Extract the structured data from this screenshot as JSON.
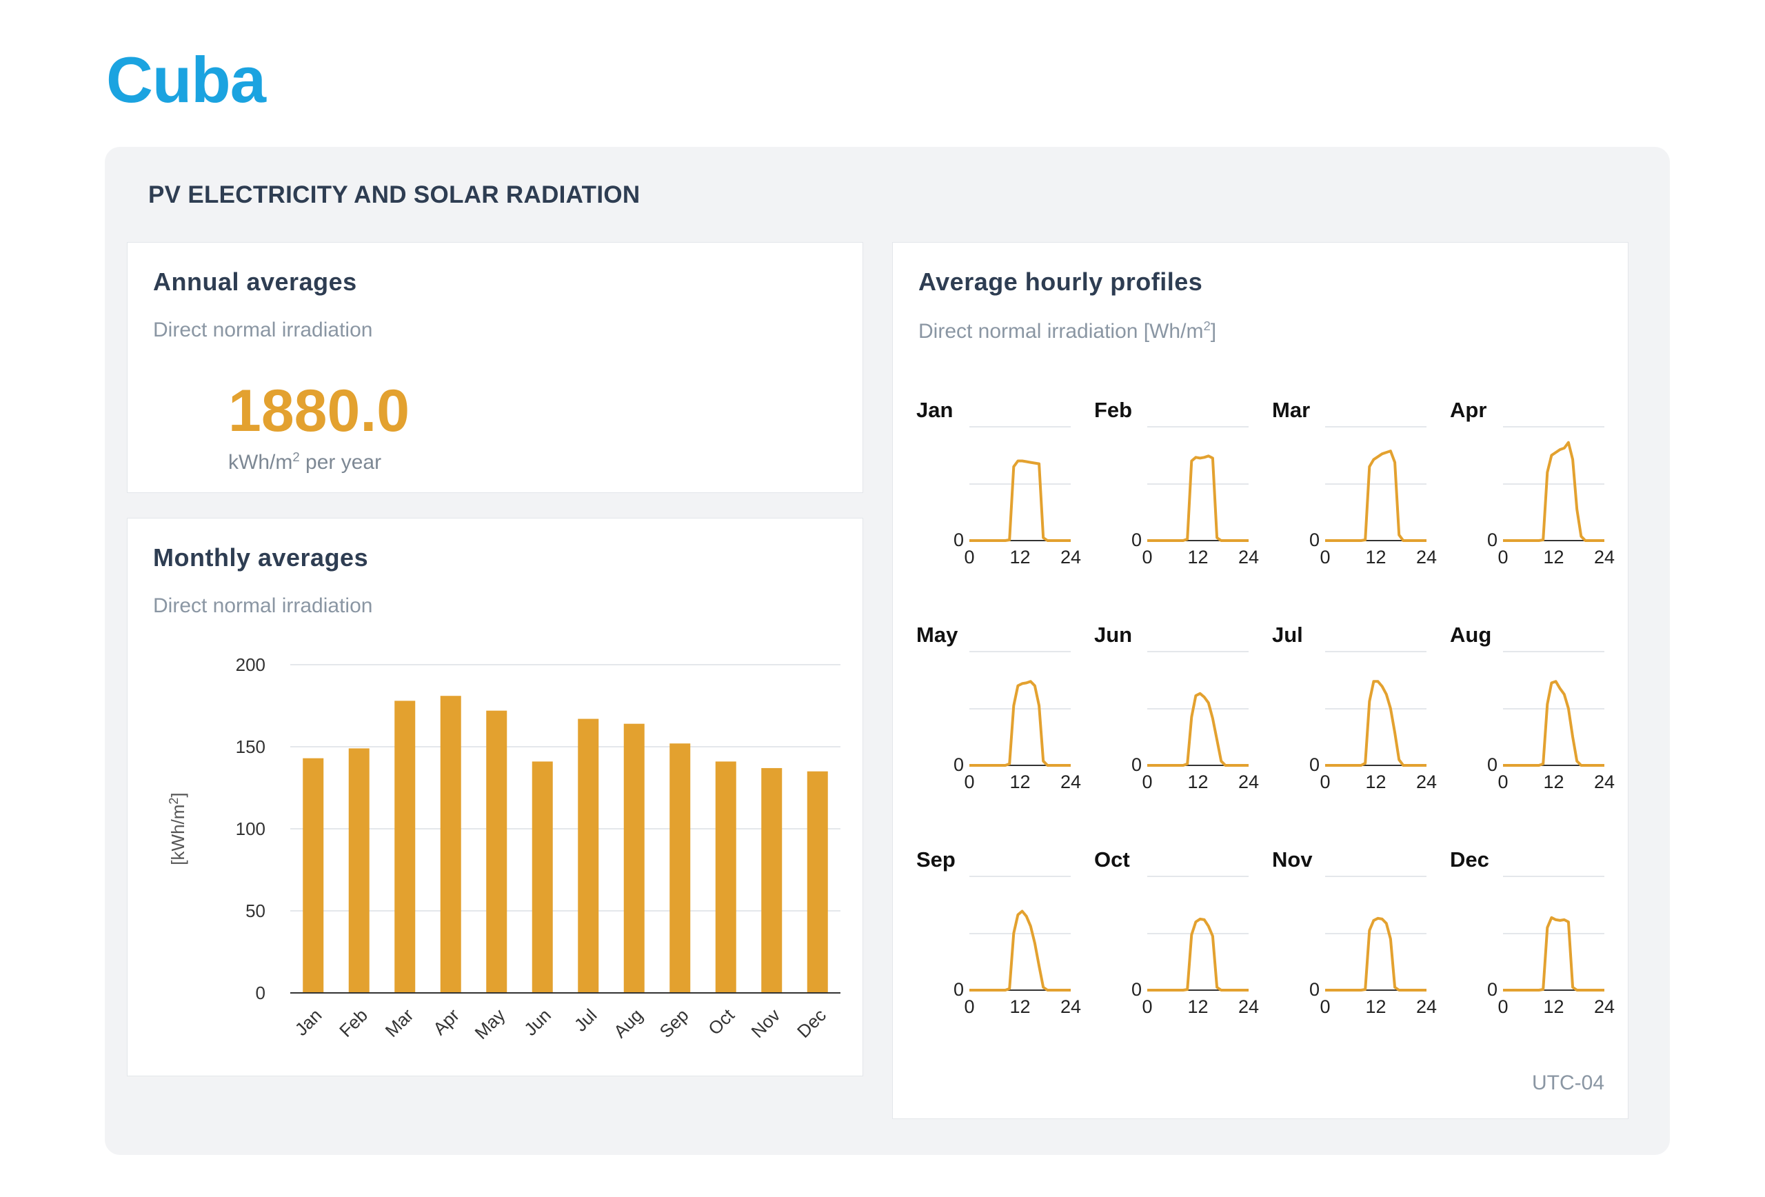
{
  "page": {
    "title": "Cuba"
  },
  "section": {
    "title": "PV ELECTRICITY AND SOLAR RADIATION"
  },
  "annual": {
    "title": "Annual averages",
    "subtitle": "Direct normal irradiation",
    "value": "1880.0",
    "unit_prefix": "kWh/m",
    "unit_sup": "2",
    "unit_suffix": " per year"
  },
  "monthly": {
    "title": "Monthly averages",
    "subtitle": "Direct normal irradiation"
  },
  "hourly": {
    "title": "Average hourly profiles",
    "subtitle_prefix": "Direct normal irradiation [Wh/m",
    "subtitle_sup": "2",
    "subtitle_suffix": "]",
    "timezone": "UTC-04"
  },
  "colors": {
    "accent": "#e3a12f",
    "title_blue": "#1ba3e0"
  },
  "chart_data": [
    {
      "id": "monthly",
      "type": "bar",
      "title": "Monthly averages",
      "ylabel": "[kWh/m2]",
      "ylim": [
        0,
        200
      ],
      "yticks": [
        0,
        50,
        100,
        150,
        200
      ],
      "grid": true,
      "categories": [
        "Jan",
        "Feb",
        "Mar",
        "Apr",
        "May",
        "Jun",
        "Jul",
        "Aug",
        "Sep",
        "Oct",
        "Nov",
        "Dec"
      ],
      "values": [
        143,
        149,
        178,
        181,
        172,
        141,
        167,
        164,
        152,
        141,
        137,
        135
      ]
    },
    {
      "id": "hourly",
      "type": "line",
      "title": "Average hourly profiles",
      "xticks": [
        0,
        12,
        24
      ],
      "ymin_label": "0",
      "ymax": 800,
      "grid": true,
      "months": [
        {
          "name": "Jan",
          "values": [
            0,
            0,
            0,
            0,
            0,
            0,
            0,
            0,
            0,
            5,
            520,
            560,
            560,
            555,
            550,
            545,
            540,
            20,
            0,
            0,
            0,
            0,
            0,
            0
          ]
        },
        {
          "name": "Feb",
          "values": [
            0,
            0,
            0,
            0,
            0,
            0,
            0,
            0,
            0,
            10,
            560,
            585,
            580,
            585,
            595,
            580,
            20,
            0,
            0,
            0,
            0,
            0,
            0,
            0
          ]
        },
        {
          "name": "Mar",
          "values": [
            0,
            0,
            0,
            0,
            0,
            0,
            0,
            0,
            0,
            5,
            520,
            570,
            590,
            610,
            620,
            630,
            550,
            40,
            0,
            0,
            0,
            0,
            0,
            0
          ]
        },
        {
          "name": "Apr",
          "values": [
            0,
            0,
            0,
            0,
            0,
            0,
            0,
            0,
            0,
            5,
            480,
            600,
            620,
            640,
            650,
            690,
            570,
            220,
            30,
            0,
            0,
            0,
            0,
            0
          ]
        },
        {
          "name": "May",
          "values": [
            0,
            0,
            0,
            0,
            0,
            0,
            0,
            0,
            0,
            10,
            420,
            560,
            575,
            580,
            590,
            560,
            420,
            30,
            0,
            0,
            0,
            0,
            0,
            0
          ]
        },
        {
          "name": "Jun",
          "values": [
            0,
            0,
            0,
            0,
            0,
            0,
            0,
            0,
            0,
            10,
            340,
            490,
            505,
            480,
            440,
            330,
            180,
            30,
            0,
            0,
            0,
            0,
            0,
            0
          ]
        },
        {
          "name": "Jul",
          "values": [
            0,
            0,
            0,
            0,
            0,
            0,
            0,
            0,
            0,
            15,
            450,
            590,
            590,
            555,
            500,
            400,
            230,
            40,
            0,
            0,
            0,
            0,
            0,
            0
          ]
        },
        {
          "name": "Aug",
          "values": [
            0,
            0,
            0,
            0,
            0,
            0,
            0,
            0,
            0,
            10,
            430,
            580,
            590,
            540,
            500,
            400,
            200,
            30,
            0,
            0,
            0,
            0,
            0,
            0
          ]
        },
        {
          "name": "Sep",
          "values": [
            0,
            0,
            0,
            0,
            0,
            0,
            0,
            0,
            0,
            10,
            400,
            530,
            555,
            520,
            450,
            330,
            170,
            20,
            0,
            0,
            0,
            0,
            0,
            0
          ]
        },
        {
          "name": "Oct",
          "values": [
            0,
            0,
            0,
            0,
            0,
            0,
            0,
            0,
            0,
            5,
            390,
            480,
            500,
            495,
            450,
            380,
            20,
            0,
            0,
            0,
            0,
            0,
            0,
            0
          ]
        },
        {
          "name": "Nov",
          "values": [
            0,
            0,
            0,
            0,
            0,
            0,
            0,
            0,
            0,
            5,
            420,
            490,
            505,
            500,
            470,
            360,
            20,
            0,
            0,
            0,
            0,
            0,
            0,
            0
          ]
        },
        {
          "name": "Dec",
          "values": [
            0,
            0,
            0,
            0,
            0,
            0,
            0,
            0,
            0,
            5,
            440,
            510,
            495,
            490,
            495,
            480,
            20,
            0,
            0,
            0,
            0,
            0,
            0,
            0
          ]
        }
      ]
    }
  ]
}
